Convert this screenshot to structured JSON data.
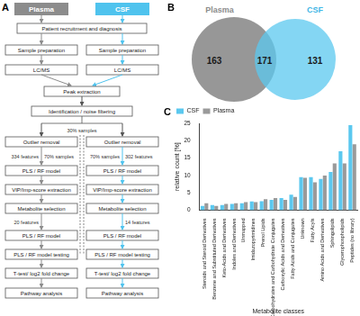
{
  "panel_labels": [
    "A",
    "B",
    "C"
  ],
  "flowchart": {
    "headers": [
      "Plasma",
      "CSF"
    ],
    "start": "Patient recruitment and diagnosis",
    "columns_top": [
      [
        "Sample preparation",
        "LC/MS"
      ],
      [
        "Sample preparation",
        "LC/MS"
      ]
    ],
    "merged": [
      "Peak extraction",
      "Identification / noise filtering"
    ],
    "test_split": "30% samples",
    "columns": [
      {
        "steps": [
          "Outlier removal",
          "PLS / RF model",
          "VIP/Imp-score extraction",
          "Metabolite selection",
          "PLS / RF model",
          "PLS / RF model testing",
          "T-test/ log2 fold change",
          "Pathway analysis"
        ],
        "features": [
          "334 features",
          "20 features"
        ],
        "train_split": "70% samples"
      },
      {
        "steps": [
          "Outlier removal",
          "PLS / RF model",
          "VIP/Imp-score extraction",
          "Metabolite selection",
          "PLS / RF model",
          "PLS / RF model testing",
          "T-test/ log2 fold change",
          "Pathway analysis"
        ],
        "features": [
          "302 features",
          "14 features"
        ],
        "train_split": "70% samples"
      }
    ]
  },
  "venn": {
    "sets": [
      "Plasma",
      "CSF"
    ],
    "only_first": 163,
    "both": 171,
    "only_second": 131
  },
  "chart_data": {
    "type": "bar",
    "x_label": "Metabolite classes",
    "y_label": "relative count [%]",
    "categories": [
      "Steroids and Steroid Derivatives",
      "Benzene and Substituted Derivatives",
      "Keto-Acids and Derivatives",
      "Indoles and Derivatives",
      "Unmapped",
      "Imidazopyrimidines",
      "Prenol Lipids",
      "Carbohydrates and Carbohydrate Conjugates",
      "Carboxylic Acids and Derivatives",
      "Fatty Acids and Conjugates",
      "Unknown",
      "Fatty Acyls",
      "Amino Acids and Derivatives",
      "Sphingolipids",
      "Glycerophospholipids",
      "Peptides (no library)"
    ],
    "series": [
      {
        "name": "CSF",
        "color": "#5bc8ef",
        "values": [
          1.2,
          1.5,
          1.5,
          1.8,
          2.0,
          2.5,
          2.6,
          3.0,
          3.5,
          4.5,
          9.5,
          9.5,
          9.0,
          11.0,
          17.0,
          24.5
        ]
      },
      {
        "name": "Plasma",
        "color": "#9a9a9a",
        "values": [
          2.0,
          1.2,
          1.8,
          2.0,
          2.3,
          2.3,
          3.2,
          3.5,
          3.0,
          3.8,
          9.3,
          8.0,
          10.0,
          13.5,
          13.5,
          19.0
        ]
      }
    ],
    "ylim": [
      0,
      25
    ],
    "yticks": [
      0,
      5,
      10,
      15,
      20,
      25
    ],
    "legend": "top-left",
    "grid": false
  }
}
